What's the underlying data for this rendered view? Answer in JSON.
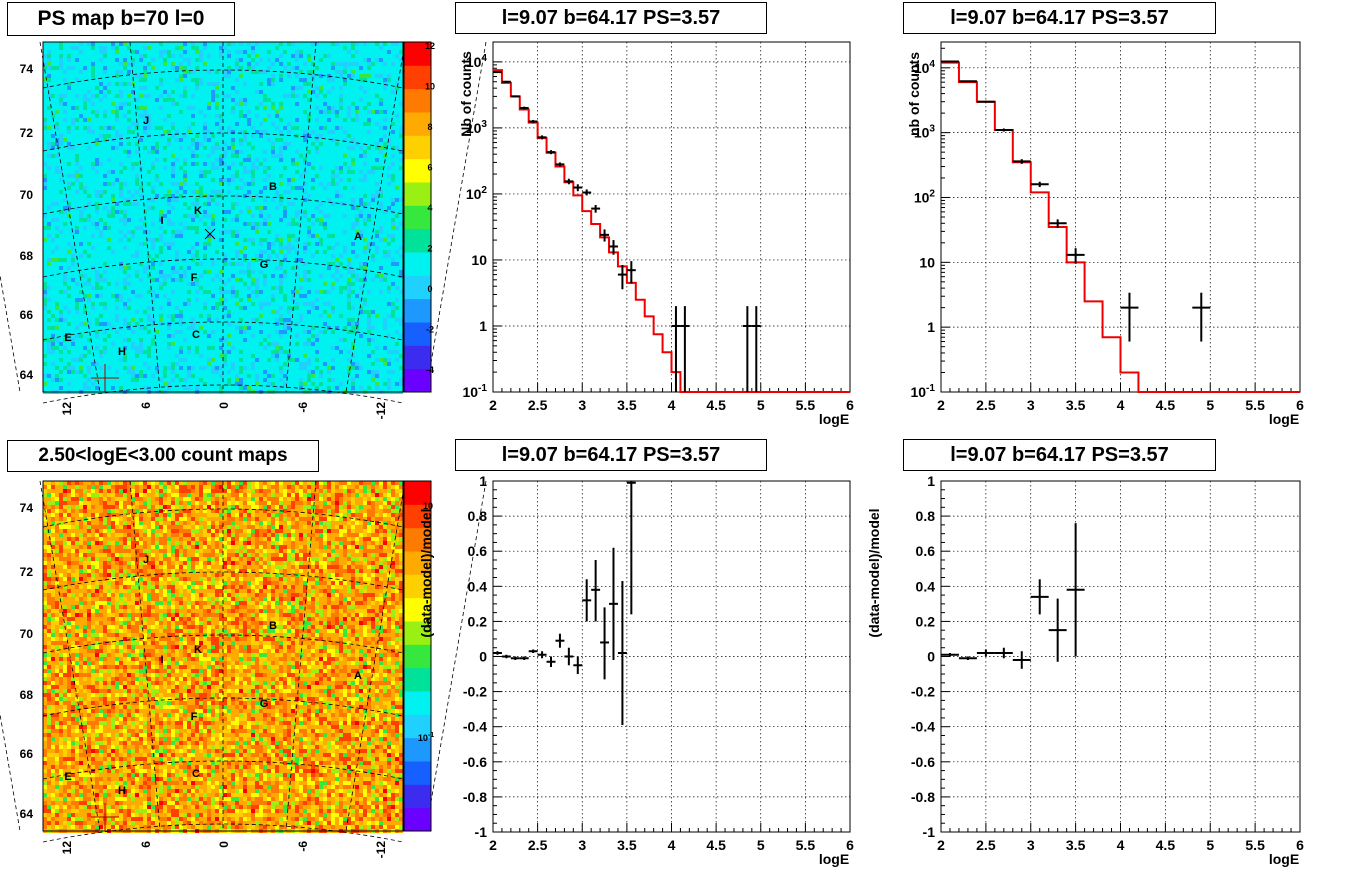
{
  "panels": {
    "map_top_title": "PS map b=70 l=0",
    "map_bottom_title": "2.50<logE<3.00 count maps",
    "spec_title_1": "l=9.07 b=64.17 PS=3.57",
    "spec_title_2": "l=9.07 b=64.17 PS=3.57",
    "res_title_1": "l=9.07 b=64.17 PS=3.57",
    "res_title_2": "l=9.07 b=64.17 PS=3.57"
  },
  "colors": {
    "model_line": "#ee0000",
    "data_points": "#000000",
    "ps_palette": [
      "#6a00ff",
      "#3c2cf0",
      "#1560ff",
      "#1c98ff",
      "#20d0ff",
      "#00f2f0",
      "#00e29a",
      "#36e83e",
      "#9af012",
      "#ffff00",
      "#ffd000",
      "#ffaa00",
      "#ff7a00",
      "#ff4000",
      "#ff0000"
    ],
    "count_palette": [
      "#6a00ff",
      "#3c2cf0",
      "#1560ff",
      "#1c98ff",
      "#20d0ff",
      "#00f2f0",
      "#00e29a",
      "#36e83e",
      "#9af012",
      "#ffff00",
      "#ffd000",
      "#ffaa00",
      "#ff7a00",
      "#ff4000",
      "#ff0000"
    ]
  },
  "maps": {
    "y_ticks": [
      "74",
      "72",
      "70",
      "68",
      "66",
      "64"
    ],
    "x_ticks": [
      "12",
      "6",
      "0",
      "-6",
      "-12"
    ],
    "sources": [
      "J",
      "B",
      "I",
      "K",
      "A",
      "G",
      "F",
      "E",
      "H",
      "C"
    ],
    "ps_colorbar_ticks": [
      "12",
      "10",
      "8",
      "6",
      "4",
      "2",
      "0",
      "-2",
      "-4"
    ],
    "count_colorbar_ticks": [
      "10",
      "1",
      "10-1"
    ]
  },
  "chart_data": [
    {
      "type": "line",
      "title": "l=9.07 b=64.17 PS=3.57",
      "xlabel": "logE",
      "ylabel": "Nb of counts",
      "xlim": [
        2,
        6
      ],
      "ylim": [
        0.1,
        20000
      ],
      "yscale": "log",
      "grid": true,
      "x_ticks": [
        "2",
        "2.5",
        "3",
        "3.5",
        "4",
        "4.5",
        "5",
        "5.5",
        "6"
      ],
      "y_ticks": [
        "10^-1",
        "1",
        "10",
        "10^2",
        "10^3",
        "10^4"
      ],
      "model_bins": {
        "edges": [
          2.0,
          2.1,
          2.2,
          2.3,
          2.4,
          2.5,
          2.6,
          2.7,
          2.8,
          2.9,
          3.0,
          3.1,
          3.2,
          3.3,
          3.4,
          3.5,
          3.6,
          3.7,
          3.8,
          3.9,
          4.0,
          4.1,
          4.2,
          6.0
        ],
        "values": [
          7500,
          4800,
          3000,
          1900,
          1200,
          700,
          420,
          260,
          150,
          95,
          55,
          35,
          22,
          13,
          8,
          4.5,
          2.5,
          1.4,
          0.75,
          0.4,
          0.2,
          0.1,
          0.1
        ]
      },
      "data_points": [
        {
          "x": 2.05,
          "y": 7000,
          "lo": 6800,
          "hi": 7200
        },
        {
          "x": 2.15,
          "y": 5000,
          "lo": 4850,
          "hi": 5150
        },
        {
          "x": 2.25,
          "y": 3000,
          "lo": 2900,
          "hi": 3100
        },
        {
          "x": 2.35,
          "y": 2000,
          "lo": 1900,
          "hi": 2100
        },
        {
          "x": 2.45,
          "y": 1250,
          "lo": 1180,
          "hi": 1320
        },
        {
          "x": 2.55,
          "y": 720,
          "lo": 670,
          "hi": 770
        },
        {
          "x": 2.65,
          "y": 430,
          "lo": 400,
          "hi": 460
        },
        {
          "x": 2.75,
          "y": 280,
          "lo": 260,
          "hi": 300
        },
        {
          "x": 2.85,
          "y": 155,
          "lo": 140,
          "hi": 170
        },
        {
          "x": 2.95,
          "y": 125,
          "lo": 110,
          "hi": 140
        },
        {
          "x": 3.05,
          "y": 105,
          "lo": 95,
          "hi": 117
        },
        {
          "x": 3.15,
          "y": 60,
          "lo": 52,
          "hi": 68
        },
        {
          "x": 3.25,
          "y": 24,
          "lo": 19,
          "hi": 29
        },
        {
          "x": 3.35,
          "y": 16,
          "lo": 12,
          "hi": 20
        },
        {
          "x": 3.45,
          "y": 6,
          "lo": 3.6,
          "hi": 8.4
        },
        {
          "x": 3.55,
          "y": 7,
          "lo": 4.4,
          "hi": 9.6
        },
        {
          "x": 4.05,
          "y": 1,
          "lo": 0.1,
          "hi": 2
        },
        {
          "x": 4.15,
          "y": 1,
          "lo": 0.1,
          "hi": 2
        },
        {
          "x": 4.85,
          "y": 1,
          "lo": 0.1,
          "hi": 2
        },
        {
          "x": 4.95,
          "y": 1,
          "lo": 0.1,
          "hi": 2
        }
      ]
    },
    {
      "type": "line",
      "title": "l=9.07 b=64.17 PS=3.57",
      "xlabel": "logE",
      "ylabel": "nb of counts",
      "xlim": [
        2,
        6
      ],
      "ylim": [
        0.1,
        25000
      ],
      "yscale": "log",
      "grid": true,
      "x_ticks": [
        "2",
        "2.5",
        "3",
        "3.5",
        "4",
        "4.5",
        "5",
        "5.5",
        "6"
      ],
      "y_ticks": [
        "10^-1",
        "1",
        "10",
        "10^2",
        "10^3",
        "10^4"
      ],
      "model_bins": {
        "edges": [
          2.0,
          2.2,
          2.4,
          2.6,
          2.8,
          3.0,
          3.2,
          3.4,
          3.6,
          3.8,
          4.0,
          4.2,
          6.0
        ],
        "values": [
          12000,
          6000,
          3000,
          1100,
          350,
          120,
          35,
          10,
          2.5,
          0.7,
          0.2,
          0.1
        ]
      },
      "data_points": [
        {
          "x": 2.1,
          "y": 12500,
          "lo": 12300,
          "hi": 12700
        },
        {
          "x": 2.3,
          "y": 6200,
          "lo": 6050,
          "hi": 6350
        },
        {
          "x": 2.5,
          "y": 3000,
          "lo": 2900,
          "hi": 3100
        },
        {
          "x": 2.7,
          "y": 1100,
          "lo": 1040,
          "hi": 1160
        },
        {
          "x": 2.9,
          "y": 360,
          "lo": 330,
          "hi": 390
        },
        {
          "x": 3.1,
          "y": 160,
          "lo": 145,
          "hi": 175
        },
        {
          "x": 3.3,
          "y": 40,
          "lo": 34,
          "hi": 46
        },
        {
          "x": 3.5,
          "y": 13,
          "lo": 9.5,
          "hi": 16.5
        },
        {
          "x": 4.1,
          "y": 2,
          "lo": 0.6,
          "hi": 3.4
        },
        {
          "x": 4.9,
          "y": 2,
          "lo": 0.6,
          "hi": 3.4
        }
      ]
    },
    {
      "type": "scatter",
      "title": "l=9.07 b=64.17 PS=3.57",
      "xlabel": "logE",
      "ylabel": "(data-model)/model",
      "xlim": [
        2,
        6
      ],
      "ylim": [
        -1,
        1
      ],
      "grid": true,
      "x_ticks": [
        "2",
        "2.5",
        "3",
        "3.5",
        "4",
        "4.5",
        "5",
        "5.5",
        "6"
      ],
      "y_ticks": [
        "-1",
        "-0.8",
        "-0.6",
        "-0.4",
        "-0.2",
        "0",
        "0.2",
        "0.4",
        "0.6",
        "0.8",
        "1"
      ],
      "data_points": [
        {
          "x": 2.05,
          "y": 0.02,
          "lo": 0.01,
          "hi": 0.03
        },
        {
          "x": 2.15,
          "y": 0.0,
          "lo": -0.01,
          "hi": 0.01
        },
        {
          "x": 2.25,
          "y": -0.01,
          "lo": -0.02,
          "hi": 0.0
        },
        {
          "x": 2.35,
          "y": -0.01,
          "lo": -0.02,
          "hi": 0.0
        },
        {
          "x": 2.45,
          "y": 0.03,
          "lo": 0.02,
          "hi": 0.04
        },
        {
          "x": 2.55,
          "y": 0.01,
          "lo": -0.01,
          "hi": 0.03
        },
        {
          "x": 2.65,
          "y": -0.03,
          "lo": -0.06,
          "hi": 0.0
        },
        {
          "x": 2.75,
          "y": 0.09,
          "lo": 0.05,
          "hi": 0.13
        },
        {
          "x": 2.85,
          "y": 0.0,
          "lo": -0.05,
          "hi": 0.05
        },
        {
          "x": 2.95,
          "y": -0.05,
          "lo": -0.1,
          "hi": 0.0
        },
        {
          "x": 3.05,
          "y": 0.32,
          "lo": 0.2,
          "hi": 0.44
        },
        {
          "x": 3.15,
          "y": 0.38,
          "lo": 0.2,
          "hi": 0.55
        },
        {
          "x": 3.25,
          "y": 0.08,
          "lo": -0.13,
          "hi": 0.28
        },
        {
          "x": 3.35,
          "y": 0.3,
          "lo": -0.02,
          "hi": 0.62
        },
        {
          "x": 3.45,
          "y": 0.02,
          "lo": -0.39,
          "hi": 0.43
        },
        {
          "x": 3.55,
          "y": 0.99,
          "lo": 0.24,
          "hi": 1.0
        }
      ]
    },
    {
      "type": "scatter",
      "title": "l=9.07 b=64.17 PS=3.57",
      "xlabel": "logE",
      "ylabel": "(data-model)/model",
      "xlim": [
        2,
        6
      ],
      "ylim": [
        -1,
        1
      ],
      "grid": true,
      "x_ticks": [
        "2",
        "2.5",
        "3",
        "3.5",
        "4",
        "4.5",
        "5",
        "5.5",
        "6"
      ],
      "y_ticks": [
        "-1",
        "-0.8",
        "-0.6",
        "-0.4",
        "-0.2",
        "0",
        "0.2",
        "0.4",
        "0.6",
        "0.8",
        "1"
      ],
      "data_points": [
        {
          "x": 2.1,
          "y": 0.01,
          "lo": 0.0,
          "hi": 0.02
        },
        {
          "x": 2.3,
          "y": -0.01,
          "lo": -0.02,
          "hi": 0.0
        },
        {
          "x": 2.5,
          "y": 0.02,
          "lo": 0.0,
          "hi": 0.04
        },
        {
          "x": 2.7,
          "y": 0.02,
          "lo": -0.01,
          "hi": 0.05
        },
        {
          "x": 2.9,
          "y": -0.02,
          "lo": -0.07,
          "hi": 0.03
        },
        {
          "x": 3.1,
          "y": 0.34,
          "lo": 0.24,
          "hi": 0.44
        },
        {
          "x": 3.3,
          "y": 0.15,
          "lo": -0.03,
          "hi": 0.33
        },
        {
          "x": 3.5,
          "y": 0.38,
          "lo": 0.0,
          "hi": 0.76
        }
      ]
    }
  ]
}
